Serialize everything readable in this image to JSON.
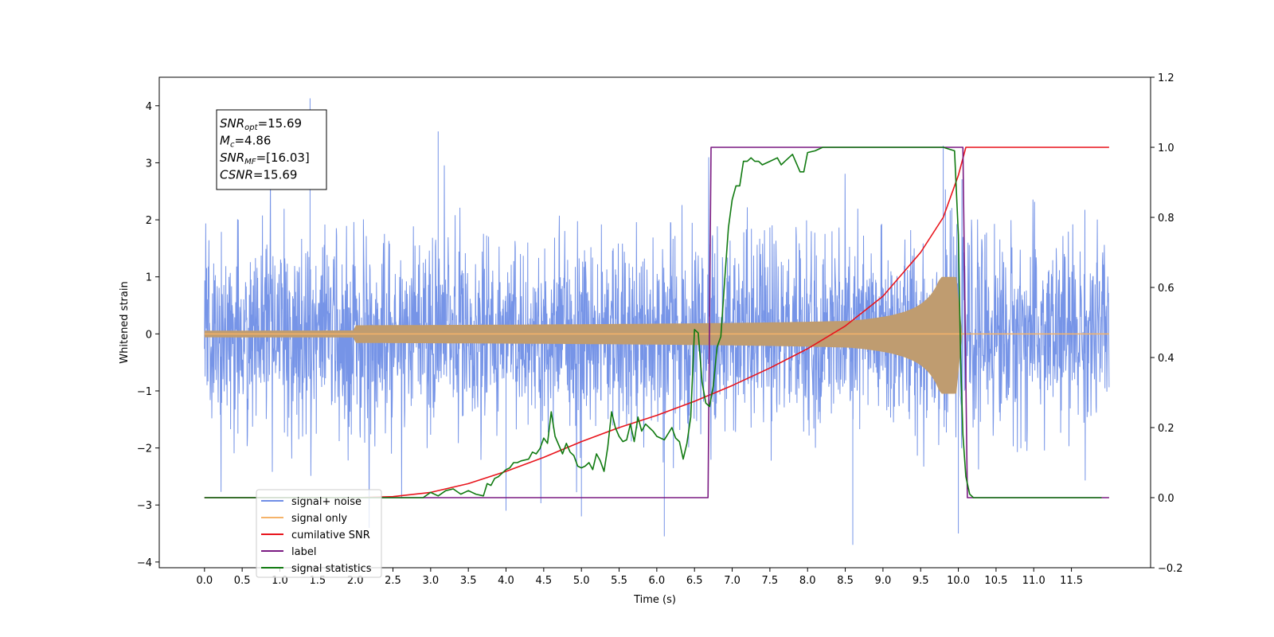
{
  "chart_data": {
    "type": "line",
    "title": "",
    "xlabel": "Time (s)",
    "ylabel_left": "Whitened strain",
    "ylabel_right": "",
    "xlim": [
      -0.6,
      12.55
    ],
    "ylim_left": [
      -4.1,
      4.5
    ],
    "ylim_right": [
      -0.2,
      1.2
    ],
    "x_ticks": [
      0.0,
      0.5,
      1.0,
      1.5,
      2.0,
      2.5,
      3.0,
      3.5,
      4.0,
      4.5,
      5.0,
      5.5,
      6.0,
      6.5,
      7.0,
      7.5,
      8.0,
      8.5,
      9.0,
      9.5,
      10.0,
      10.5,
      11.0,
      11.5
    ],
    "x_tick_labels": [
      "0.0",
      "0.5",
      "1.0",
      "1.5",
      "2.0",
      "2.5",
      "3.0",
      "3.5",
      "4.0",
      "4.5",
      "5.0",
      "5.5",
      "6.0",
      "6.5",
      "7.0",
      "7.5",
      "8.0",
      "8.5",
      "9.0",
      "9.5",
      "10.0",
      "10.5",
      "11.0",
      "11.5"
    ],
    "y_left_ticks": [
      -4,
      -3,
      -2,
      -1,
      0,
      1,
      2,
      3,
      4
    ],
    "y_left_tick_labels": [
      "−4",
      "−3",
      "−2",
      "−1",
      "0",
      "1",
      "2",
      "3",
      "4"
    ],
    "y_right_ticks": [
      -0.2,
      0.0,
      0.2,
      0.4,
      0.6,
      0.8,
      1.0,
      1.2
    ],
    "y_right_tick_labels": [
      "−0.2",
      "0.0",
      "0.2",
      "0.4",
      "0.6",
      "0.8",
      "1.0",
      "1.2"
    ],
    "grid": false,
    "legend_position": "lower-left",
    "annotation": {
      "lines": [
        {
          "sym": "SNR",
          "sub": "opt",
          "val": "=15.69"
        },
        {
          "sym": "M",
          "sub": "c",
          "val": "=4.86"
        },
        {
          "sym": "SNR",
          "sub": "MF",
          "val": "=[16.03]"
        },
        {
          "sym": "CSNR",
          "sub": "",
          "val": "=15.69"
        }
      ]
    },
    "series": [
      {
        "name": "signal+ noise",
        "axis": "left",
        "color": "#6f8ee6",
        "kind": "noise",
        "x_start": 0.0,
        "x_end": 12.0,
        "typical_range": [
          -2.0,
          2.0
        ],
        "peaks": [
          4.13,
          -3.7
        ]
      },
      {
        "name": "signal only",
        "axis": "left",
        "color": "#f5b36a",
        "kind": "chirp",
        "x_start": 0.0,
        "x_end": 12.0,
        "merger_time": 10.05,
        "max_amplitude": 1.0
      },
      {
        "name": "cumilative SNR",
        "axis": "right",
        "color": "#e8141c",
        "x": [
          0.0,
          2.0,
          2.5,
          3.0,
          3.5,
          4.0,
          4.5,
          5.0,
          5.5,
          6.0,
          6.5,
          7.0,
          7.5,
          8.0,
          8.5,
          9.0,
          9.5,
          9.8,
          10.0,
          10.1,
          12.0
        ],
        "y": [
          0.0,
          0.0,
          0.003,
          0.015,
          0.04,
          0.075,
          0.115,
          0.16,
          0.2,
          0.235,
          0.275,
          0.32,
          0.37,
          0.425,
          0.49,
          0.575,
          0.7,
          0.8,
          0.92,
          1.0,
          1.0
        ]
      },
      {
        "name": "label",
        "axis": "right",
        "color": "#7a1a82",
        "x": [
          0.0,
          6.68,
          6.72,
          10.06,
          10.12,
          12.0
        ],
        "y": [
          0.0,
          0.0,
          1.0,
          1.0,
          0.0,
          0.0
        ]
      },
      {
        "name": "signal statistics",
        "axis": "right",
        "color": "#107a10",
        "x": [
          0.0,
          2.9,
          3.0,
          3.1,
          3.2,
          3.3,
          3.4,
          3.5,
          3.6,
          3.7,
          3.75,
          3.8,
          3.85,
          3.9,
          4.0,
          4.05,
          4.1,
          4.15,
          4.2,
          4.3,
          4.35,
          4.4,
          4.45,
          4.5,
          4.55,
          4.6,
          4.65,
          4.7,
          4.75,
          4.8,
          4.85,
          4.9,
          4.95,
          5.0,
          5.05,
          5.1,
          5.15,
          5.2,
          5.25,
          5.3,
          5.35,
          5.4,
          5.45,
          5.5,
          5.55,
          5.6,
          5.65,
          5.7,
          5.75,
          5.8,
          5.85,
          5.9,
          5.95,
          6.0,
          6.1,
          6.2,
          6.25,
          6.3,
          6.35,
          6.4,
          6.45,
          6.5,
          6.55,
          6.6,
          6.65,
          6.7,
          6.75,
          6.8,
          6.85,
          6.9,
          6.95,
          7.0,
          7.05,
          7.1,
          7.15,
          7.2,
          7.25,
          7.3,
          7.35,
          7.4,
          7.5,
          7.6,
          7.65,
          7.7,
          7.8,
          7.9,
          7.95,
          8.0,
          8.1,
          8.2,
          8.3,
          8.4,
          9.0,
          9.5,
          9.8,
          9.95,
          10.0,
          10.03,
          10.06,
          10.1,
          10.15,
          10.2,
          10.3,
          11.0,
          11.9
        ],
        "y": [
          0.0,
          0.0,
          0.015,
          0.005,
          0.02,
          0.025,
          0.01,
          0.02,
          0.01,
          0.005,
          0.04,
          0.035,
          0.055,
          0.06,
          0.08,
          0.085,
          0.1,
          0.1,
          0.105,
          0.11,
          0.13,
          0.125,
          0.14,
          0.17,
          0.155,
          0.245,
          0.175,
          0.15,
          0.125,
          0.155,
          0.13,
          0.12,
          0.09,
          0.085,
          0.09,
          0.1,
          0.08,
          0.125,
          0.105,
          0.075,
          0.145,
          0.245,
          0.2,
          0.175,
          0.16,
          0.165,
          0.21,
          0.16,
          0.23,
          0.19,
          0.21,
          0.2,
          0.19,
          0.175,
          0.165,
          0.2,
          0.17,
          0.16,
          0.11,
          0.155,
          0.23,
          0.48,
          0.47,
          0.33,
          0.27,
          0.26,
          0.32,
          0.43,
          0.46,
          0.62,
          0.77,
          0.85,
          0.89,
          0.89,
          0.96,
          0.96,
          0.97,
          0.96,
          0.96,
          0.95,
          0.96,
          0.97,
          0.95,
          0.96,
          0.98,
          0.93,
          0.93,
          0.985,
          0.99,
          1.0,
          1.0,
          1.0,
          1.0,
          1.0,
          1.0,
          0.99,
          0.75,
          0.4,
          0.18,
          0.06,
          0.01,
          0.0,
          0.0,
          0.0,
          0.0
        ]
      }
    ]
  }
}
